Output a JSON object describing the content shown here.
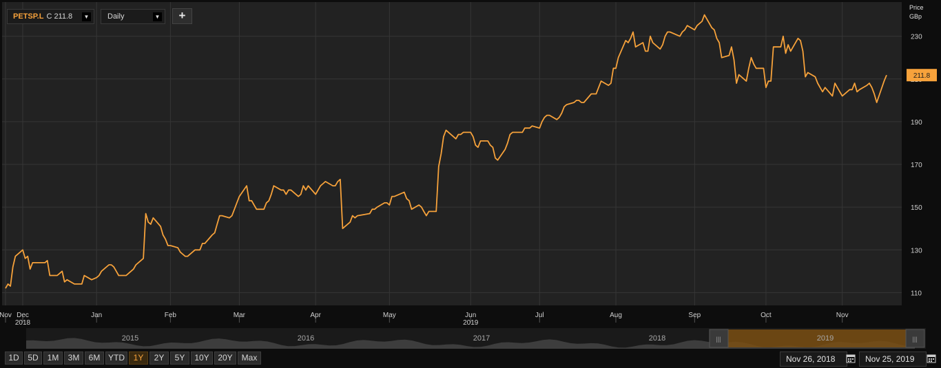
{
  "header": {
    "symbol": "PETSP.L",
    "close_label": "C 211.8",
    "interval": "Daily",
    "add_label": "+",
    "price_label": "Price",
    "unit_label": "GBp",
    "dropdown_glyph": "▼"
  },
  "colors": {
    "line": "#f7a23b",
    "background": "#222222",
    "grid": "#363636"
  },
  "chart_data": {
    "type": "line",
    "title": "",
    "xlabel": "",
    "ylabel": "Price GBp",
    "ylim": [
      104,
      246
    ],
    "yticks": [
      110,
      130,
      150,
      170,
      190,
      210,
      230
    ],
    "grid": true,
    "last_value_label": "211.8",
    "x_ticks": [
      {
        "label": "Nov",
        "year": "",
        "date": "2018-11-26"
      },
      {
        "label": "Dec",
        "year": "2018",
        "date": "2018-12-03"
      },
      {
        "label": "Jan",
        "year": "",
        "date": "2019-01-02"
      },
      {
        "label": "Feb",
        "year": "",
        "date": "2019-02-01"
      },
      {
        "label": "Mar",
        "year": "",
        "date": "2019-03-01"
      },
      {
        "label": "Apr",
        "year": "",
        "date": "2019-04-01"
      },
      {
        "label": "May",
        "year": "",
        "date": "2019-05-01"
      },
      {
        "label": "Jun",
        "year": "2019",
        "date": "2019-06-03"
      },
      {
        "label": "Jul",
        "year": "",
        "date": "2019-07-01"
      },
      {
        "label": "Aug",
        "year": "",
        "date": "2019-08-01"
      },
      {
        "label": "Sep",
        "year": "",
        "date": "2019-09-02"
      },
      {
        "label": "Oct",
        "year": "",
        "date": "2019-10-01"
      },
      {
        "label": "Nov",
        "year": "",
        "date": "2019-11-01"
      }
    ],
    "series": [
      {
        "values": [
          [
            "2018-11-26",
            112
          ],
          [
            "2018-11-27",
            114
          ],
          [
            "2018-11-28",
            113
          ],
          [
            "2018-11-29",
            122
          ],
          [
            "2018-11-30",
            127
          ],
          [
            "2018-12-03",
            130
          ],
          [
            "2018-12-04",
            126
          ],
          [
            "2018-12-05",
            127
          ],
          [
            "2018-12-06",
            121
          ],
          [
            "2018-12-07",
            124
          ],
          [
            "2018-12-10",
            124
          ],
          [
            "2018-12-11",
            124
          ],
          [
            "2018-12-12",
            124
          ],
          [
            "2018-12-13",
            125
          ],
          [
            "2018-12-14",
            118
          ],
          [
            "2018-12-17",
            118
          ],
          [
            "2018-12-18",
            119
          ],
          [
            "2018-12-19",
            120
          ],
          [
            "2018-12-20",
            115
          ],
          [
            "2018-12-21",
            116
          ],
          [
            "2018-12-24",
            114
          ],
          [
            "2018-12-27",
            114
          ],
          [
            "2018-12-28",
            118
          ],
          [
            "2018-12-31",
            116
          ],
          [
            "2019-01-02",
            117
          ],
          [
            "2019-01-03",
            118
          ],
          [
            "2019-01-04",
            120
          ],
          [
            "2019-01-07",
            123
          ],
          [
            "2019-01-08",
            123
          ],
          [
            "2019-01-09",
            122
          ],
          [
            "2019-01-10",
            120
          ],
          [
            "2019-01-11",
            118
          ],
          [
            "2019-01-14",
            118
          ],
          [
            "2019-01-15",
            119
          ],
          [
            "2019-01-16",
            120
          ],
          [
            "2019-01-17",
            121
          ],
          [
            "2019-01-18",
            123
          ],
          [
            "2019-01-21",
            126
          ],
          [
            "2019-01-22",
            147
          ],
          [
            "2019-01-23",
            143
          ],
          [
            "2019-01-24",
            142
          ],
          [
            "2019-01-25",
            145
          ],
          [
            "2019-01-28",
            141
          ],
          [
            "2019-01-29",
            137
          ],
          [
            "2019-01-30",
            135
          ],
          [
            "2019-01-31",
            132
          ],
          [
            "2019-02-01",
            132
          ],
          [
            "2019-02-04",
            131
          ],
          [
            "2019-02-05",
            129
          ],
          [
            "2019-02-06",
            128
          ],
          [
            "2019-02-07",
            127
          ],
          [
            "2019-02-08",
            127
          ],
          [
            "2019-02-11",
            130
          ],
          [
            "2019-02-12",
            130
          ],
          [
            "2019-02-13",
            130
          ],
          [
            "2019-02-14",
            133
          ],
          [
            "2019-02-15",
            133
          ],
          [
            "2019-02-18",
            137
          ],
          [
            "2019-02-19",
            138
          ],
          [
            "2019-02-20",
            142
          ],
          [
            "2019-02-21",
            146
          ],
          [
            "2019-02-22",
            146
          ],
          [
            "2019-02-25",
            145
          ],
          [
            "2019-02-26",
            146
          ],
          [
            "2019-02-27",
            149
          ],
          [
            "2019-02-28",
            152
          ],
          [
            "2019-03-01",
            155
          ],
          [
            "2019-03-04",
            160
          ],
          [
            "2019-03-05",
            153
          ],
          [
            "2019-03-06",
            153
          ],
          [
            "2019-03-07",
            151
          ],
          [
            "2019-03-08",
            149
          ],
          [
            "2019-03-11",
            149
          ],
          [
            "2019-03-12",
            152
          ],
          [
            "2019-03-13",
            153
          ],
          [
            "2019-03-14",
            156
          ],
          [
            "2019-03-15",
            160
          ],
          [
            "2019-03-18",
            158
          ],
          [
            "2019-03-19",
            158
          ],
          [
            "2019-03-20",
            156
          ],
          [
            "2019-03-21",
            158
          ],
          [
            "2019-03-22",
            158
          ],
          [
            "2019-03-25",
            155
          ],
          [
            "2019-03-26",
            156
          ],
          [
            "2019-03-27",
            160
          ],
          [
            "2019-03-28",
            158
          ],
          [
            "2019-03-29",
            160
          ],
          [
            "2019-04-01",
            156
          ],
          [
            "2019-04-02",
            158
          ],
          [
            "2019-04-03",
            160
          ],
          [
            "2019-04-04",
            161
          ],
          [
            "2019-04-05",
            162
          ],
          [
            "2019-04-08",
            160
          ],
          [
            "2019-04-09",
            160
          ],
          [
            "2019-04-10",
            162
          ],
          [
            "2019-04-11",
            163
          ],
          [
            "2019-04-12",
            140
          ],
          [
            "2019-04-15",
            143
          ],
          [
            "2019-04-16",
            146
          ],
          [
            "2019-04-17",
            145
          ],
          [
            "2019-04-18",
            146
          ],
          [
            "2019-04-23",
            147
          ],
          [
            "2019-04-24",
            149
          ],
          [
            "2019-04-25",
            149
          ],
          [
            "2019-04-26",
            150
          ],
          [
            "2019-04-29",
            152
          ],
          [
            "2019-04-30",
            152
          ],
          [
            "2019-05-01",
            151
          ],
          [
            "2019-05-02",
            155
          ],
          [
            "2019-05-03",
            155
          ],
          [
            "2019-05-07",
            157
          ],
          [
            "2019-05-08",
            154
          ],
          [
            "2019-05-09",
            153
          ],
          [
            "2019-05-10",
            149
          ],
          [
            "2019-05-13",
            151
          ],
          [
            "2019-05-14",
            150
          ],
          [
            "2019-05-15",
            148
          ],
          [
            "2019-05-16",
            146
          ],
          [
            "2019-05-17",
            148
          ],
          [
            "2019-05-20",
            148
          ],
          [
            "2019-05-21",
            169
          ],
          [
            "2019-05-22",
            175
          ],
          [
            "2019-05-23",
            183
          ],
          [
            "2019-05-24",
            186
          ],
          [
            "2019-05-28",
            182
          ],
          [
            "2019-05-29",
            184
          ],
          [
            "2019-05-30",
            184
          ],
          [
            "2019-05-31",
            185
          ],
          [
            "2019-06-03",
            185
          ],
          [
            "2019-06-04",
            183
          ],
          [
            "2019-06-05",
            179
          ],
          [
            "2019-06-06",
            178
          ],
          [
            "2019-06-07",
            181
          ],
          [
            "2019-06-10",
            181
          ],
          [
            "2019-06-11",
            179
          ],
          [
            "2019-06-12",
            178
          ],
          [
            "2019-06-13",
            173
          ],
          [
            "2019-06-14",
            172
          ],
          [
            "2019-06-17",
            177
          ],
          [
            "2019-06-18",
            180
          ],
          [
            "2019-06-19",
            184
          ],
          [
            "2019-06-20",
            185
          ],
          [
            "2019-06-21",
            185
          ],
          [
            "2019-06-24",
            185
          ],
          [
            "2019-06-25",
            187
          ],
          [
            "2019-06-26",
            187
          ],
          [
            "2019-06-27",
            187
          ],
          [
            "2019-06-28",
            188
          ],
          [
            "2019-07-01",
            187
          ],
          [
            "2019-07-02",
            190
          ],
          [
            "2019-07-03",
            192
          ],
          [
            "2019-07-04",
            193
          ],
          [
            "2019-07-05",
            193
          ],
          [
            "2019-07-08",
            191
          ],
          [
            "2019-07-09",
            192
          ],
          [
            "2019-07-10",
            194
          ],
          [
            "2019-07-11",
            197
          ],
          [
            "2019-07-12",
            198
          ],
          [
            "2019-07-15",
            199
          ],
          [
            "2019-07-16",
            200
          ],
          [
            "2019-07-17",
            200
          ],
          [
            "2019-07-18",
            199
          ],
          [
            "2019-07-19",
            199
          ],
          [
            "2019-07-22",
            203
          ],
          [
            "2019-07-23",
            203
          ],
          [
            "2019-07-24",
            203
          ],
          [
            "2019-07-25",
            206
          ],
          [
            "2019-07-26",
            209
          ],
          [
            "2019-07-29",
            207
          ],
          [
            "2019-07-30",
            208
          ],
          [
            "2019-07-31",
            215
          ],
          [
            "2019-08-01",
            215
          ],
          [
            "2019-08-02",
            220
          ],
          [
            "2019-08-05",
            228
          ],
          [
            "2019-08-06",
            227
          ],
          [
            "2019-08-07",
            229
          ],
          [
            "2019-08-08",
            232
          ],
          [
            "2019-08-09",
            225
          ],
          [
            "2019-08-12",
            227
          ],
          [
            "2019-08-13",
            223
          ],
          [
            "2019-08-14",
            223
          ],
          [
            "2019-08-15",
            230
          ],
          [
            "2019-08-16",
            227
          ],
          [
            "2019-08-19",
            224
          ],
          [
            "2019-08-20",
            226
          ],
          [
            "2019-08-21",
            230
          ],
          [
            "2019-08-22",
            232
          ],
          [
            "2019-08-23",
            232
          ],
          [
            "2019-08-27",
            230
          ],
          [
            "2019-08-28",
            232
          ],
          [
            "2019-08-29",
            233
          ],
          [
            "2019-08-30",
            235
          ],
          [
            "2019-09-02",
            233
          ],
          [
            "2019-09-03",
            235
          ],
          [
            "2019-09-04",
            236
          ],
          [
            "2019-09-05",
            237
          ],
          [
            "2019-09-06",
            240
          ],
          [
            "2019-09-09",
            234
          ],
          [
            "2019-09-10",
            233
          ],
          [
            "2019-09-11",
            229
          ],
          [
            "2019-09-12",
            227
          ],
          [
            "2019-09-13",
            220
          ],
          [
            "2019-09-16",
            221
          ],
          [
            "2019-09-17",
            225
          ],
          [
            "2019-09-18",
            219
          ],
          [
            "2019-09-19",
            208
          ],
          [
            "2019-09-20",
            212
          ],
          [
            "2019-09-23",
            209
          ],
          [
            "2019-09-24",
            215
          ],
          [
            "2019-09-25",
            220
          ],
          [
            "2019-09-26",
            217
          ],
          [
            "2019-09-27",
            215
          ],
          [
            "2019-09-30",
            215
          ],
          [
            "2019-10-01",
            206
          ],
          [
            "2019-10-02",
            209
          ],
          [
            "2019-10-03",
            209
          ],
          [
            "2019-10-04",
            225
          ],
          [
            "2019-10-07",
            225
          ],
          [
            "2019-10-08",
            230
          ],
          [
            "2019-10-09",
            222
          ],
          [
            "2019-10-10",
            226
          ],
          [
            "2019-10-11",
            223
          ],
          [
            "2019-10-14",
            229
          ],
          [
            "2019-10-15",
            228
          ],
          [
            "2019-10-16",
            223
          ],
          [
            "2019-10-17",
            211
          ],
          [
            "2019-10-18",
            213
          ],
          [
            "2019-10-21",
            211
          ],
          [
            "2019-10-22",
            208
          ],
          [
            "2019-10-23",
            206
          ],
          [
            "2019-10-24",
            204
          ],
          [
            "2019-10-25",
            206
          ],
          [
            "2019-10-28",
            202
          ],
          [
            "2019-10-29",
            208
          ],
          [
            "2019-10-30",
            206
          ],
          [
            "2019-10-31",
            204
          ],
          [
            "2019-11-01",
            202
          ],
          [
            "2019-11-04",
            205
          ],
          [
            "2019-11-05",
            205
          ],
          [
            "2019-11-06",
            208
          ],
          [
            "2019-11-07",
            204
          ],
          [
            "2019-11-08",
            205
          ],
          [
            "2019-11-11",
            207
          ],
          [
            "2019-11-12",
            208
          ],
          [
            "2019-11-13",
            206
          ],
          [
            "2019-11-14",
            203
          ],
          [
            "2019-11-15",
            199
          ],
          [
            "2019-11-18",
            209
          ],
          [
            "2019-11-19",
            211.8
          ]
        ]
      }
    ]
  },
  "navigator": {
    "years": [
      "2015",
      "2016",
      "2017",
      "2018",
      "2019"
    ],
    "left_handle": "|||",
    "right_handle": "|||"
  },
  "range_buttons": [
    {
      "label": "1D",
      "active": false
    },
    {
      "label": "5D",
      "active": false
    },
    {
      "label": "1M",
      "active": false
    },
    {
      "label": "3M",
      "active": false
    },
    {
      "label": "6M",
      "active": false
    },
    {
      "label": "YTD",
      "active": false
    },
    {
      "label": "1Y",
      "active": true
    },
    {
      "label": "2Y",
      "active": false
    },
    {
      "label": "5Y",
      "active": false
    },
    {
      "label": "10Y",
      "active": false
    },
    {
      "label": "20Y",
      "active": false
    },
    {
      "label": "Max",
      "active": false
    }
  ],
  "dates": {
    "start": "Nov 26, 2018",
    "end": "Nov 25, 2019"
  }
}
